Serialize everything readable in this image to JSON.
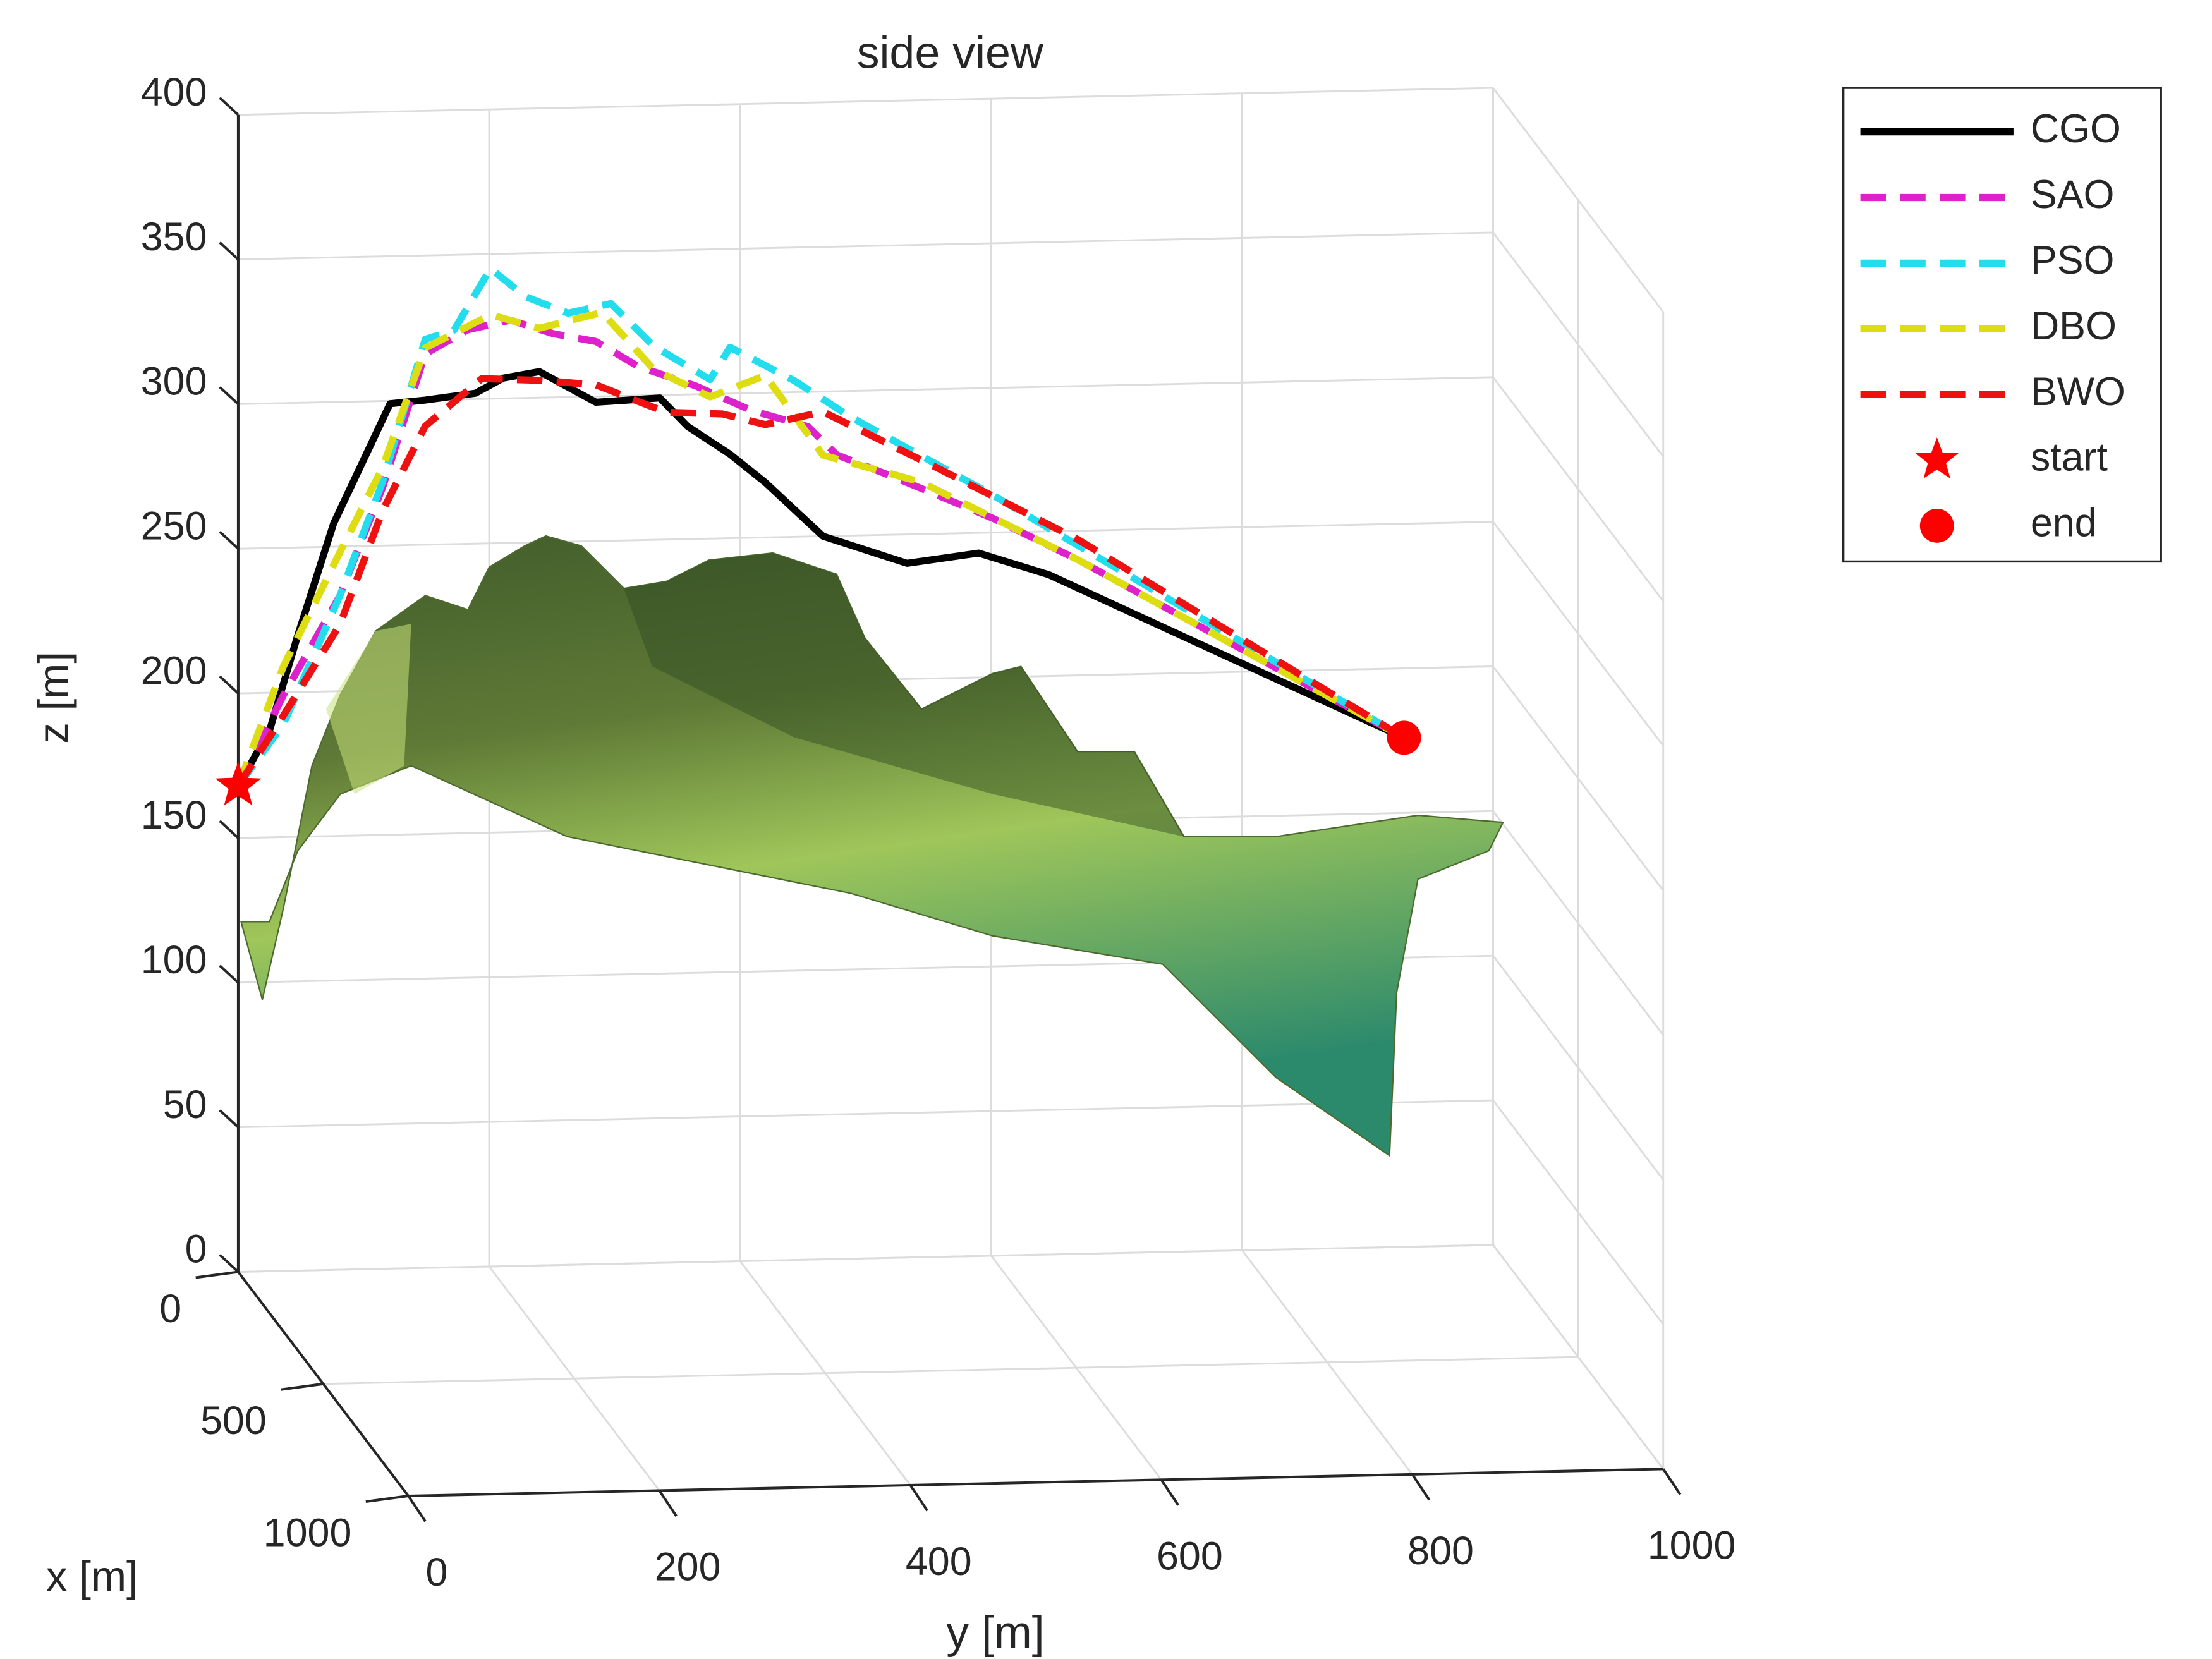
{
  "chart_data": {
    "type": "line3d",
    "title": "side view",
    "xlabel": "x [m]",
    "ylabel": "y [m]",
    "zlabel": "z [m]",
    "xlim": [
      0,
      1000
    ],
    "ylim": [
      0,
      1000
    ],
    "zlim": [
      0,
      400
    ],
    "xticks": [
      0,
      500,
      1000
    ],
    "yticks": [
      0,
      200,
      400,
      600,
      800,
      1000
    ],
    "zticks": [
      0,
      50,
      100,
      150,
      200,
      250,
      300,
      350,
      400
    ],
    "grid": true,
    "legend": "outside-upper-right",
    "series": [
      {
        "name": "CGO",
        "color": "#000000",
        "dash": false,
        "y": [
          0,
          25,
          47,
          76,
          121,
          149,
          189,
          211,
          240,
          285,
          336,
          358,
          392,
          420,
          466,
          533,
          590,
          646,
          929
        ],
        "z": [
          168,
          187,
          219,
          258,
          299,
          300,
          302,
          307,
          309,
          298,
          299,
          289,
          279,
          269,
          250,
          240,
          243,
          235,
          176
        ]
      },
      {
        "name": "SAO",
        "color": "#dd22cc",
        "dash": true,
        "y": [
          0,
          36,
          81,
          115,
          149,
          183,
          217,
          251,
          285,
          319,
          364,
          409,
          454,
          477,
          522,
          601,
          669,
          929
        ],
        "z": [
          168,
          199,
          233,
          270,
          316,
          324,
          327,
          322,
          319,
          310,
          303,
          294,
          288,
          278,
          270,
          255,
          240,
          176
        ]
      },
      {
        "name": "PSO",
        "color": "#22ddee",
        "dash": true,
        "y": [
          0,
          36,
          81,
          115,
          149,
          172,
          201,
          229,
          263,
          297,
          331,
          376,
          392,
          443,
          488,
          601,
          929
        ],
        "z": [
          168,
          189,
          233,
          272,
          321,
          324,
          345,
          335,
          329,
          332,
          317,
          305,
          316,
          304,
          291,
          263,
          176
        ]
      },
      {
        "name": "DBO",
        "color": "#dddd11",
        "dash": true,
        "y": [
          0,
          36,
          81,
          115,
          149,
          201,
          240,
          290,
          331,
          376,
          420,
          466,
          544,
          669,
          929
        ],
        "z": [
          168,
          209,
          248,
          277,
          318,
          329,
          324,
          329,
          309,
          299,
          306,
          278,
          268,
          240,
          176
        ]
      },
      {
        "name": "BWO",
        "color": "#ee1111",
        "dash": true,
        "y": [
          0,
          36,
          81,
          115,
          149,
          194,
          240,
          285,
          341,
          386,
          420,
          466,
          556,
          669,
          929
        ],
        "z": [
          168,
          192,
          223,
          262,
          291,
          307,
          306,
          304,
          294,
          293,
          289,
          293,
          273,
          247,
          176
        ]
      }
    ],
    "start": {
      "name": "start",
      "color": "#ff0000",
      "y": 0,
      "z": 168
    },
    "end": {
      "name": "end",
      "color": "#ff0000",
      "y": 929,
      "z": 176
    }
  }
}
